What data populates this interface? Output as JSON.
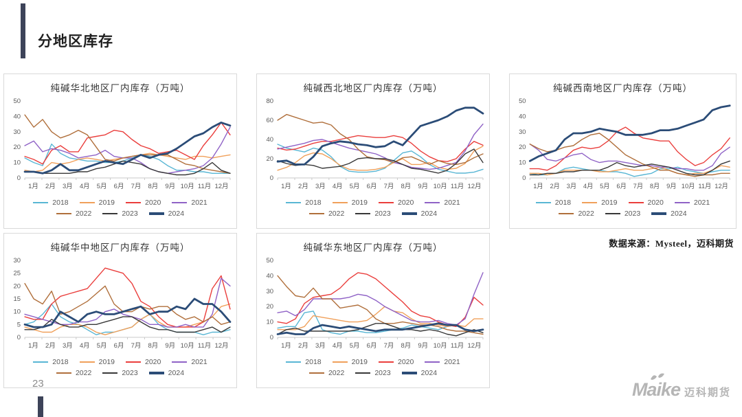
{
  "slide": {
    "title": "分地区库存",
    "page_number": "23",
    "source_note": "数据来源：Mysteel，迈科期货"
  },
  "logo": {
    "brand": "Maike",
    "brand_cn": "迈科期货"
  },
  "legend_years": [
    "2018",
    "2019",
    "2020",
    "2021",
    "2022",
    "2023",
    "2024"
  ],
  "series_colors": {
    "2018": "#58B6D4",
    "2019": "#F0A05A",
    "2020": "#EA3E3C",
    "2021": "#8F62C6",
    "2022": "#B06F3B",
    "2023": "#383838",
    "2024": "#2B4C77"
  },
  "accent_color": "#3D4359",
  "chart_data": [
    {
      "type": "line",
      "title": "纯碱华北地区厂内库存（万吨）",
      "x_labels": [
        "1月",
        "2月",
        "3月",
        "4月",
        "5月",
        "6月",
        "7月",
        "8月",
        "9月",
        "10月",
        "11月",
        "12月"
      ],
      "ylim": [
        0,
        50
      ],
      "yticks": [
        0,
        10,
        20,
        30,
        40,
        50
      ],
      "legend_position": "bottom",
      "grid": false,
      "series": [
        {
          "name": "2018",
          "values": [
            13,
            10,
            8,
            22,
            16,
            13,
            12,
            11,
            11,
            10,
            10,
            11,
            13,
            15,
            14,
            12,
            8,
            5,
            5,
            4,
            4,
            3,
            3,
            3
          ]
        },
        {
          "name": "2019",
          "values": [
            5,
            4,
            5,
            10,
            9,
            10,
            12,
            13,
            12,
            11,
            12,
            13,
            14,
            15,
            16,
            15,
            14,
            13,
            12,
            14,
            14,
            13,
            14,
            15
          ]
        },
        {
          "name": "2020",
          "values": [
            14,
            12,
            9,
            18,
            21,
            17,
            17,
            26,
            27,
            28,
            31,
            30,
            25,
            21,
            19,
            16,
            17,
            18,
            15,
            12,
            21,
            28,
            36,
            28
          ]
        },
        {
          "name": "2021",
          "values": [
            21,
            24,
            17,
            19,
            18,
            16,
            13,
            14,
            15,
            18,
            14,
            13,
            13,
            10,
            6,
            4,
            3,
            4,
            5,
            6,
            8,
            13,
            22,
            33
          ]
        },
        {
          "name": "2022",
          "values": [
            41,
            33,
            38,
            30,
            26,
            28,
            31,
            28,
            20,
            12,
            11,
            13,
            14,
            15,
            15,
            15,
            15,
            12,
            9,
            8,
            6,
            5,
            4,
            3
          ]
        },
        {
          "name": "2023",
          "values": [
            4,
            4,
            3,
            3,
            3,
            3,
            4,
            4,
            6,
            7,
            9,
            11,
            10,
            9,
            6,
            4,
            3,
            2,
            2,
            3,
            6,
            10,
            5,
            3
          ]
        },
        {
          "name": "2024",
          "values": [
            4,
            4,
            3,
            5,
            9,
            5,
            5,
            7,
            9,
            11,
            10,
            9,
            12,
            15,
            13,
            15,
            16,
            19,
            23,
            27,
            29,
            33,
            36,
            34
          ]
        }
      ]
    },
    {
      "type": "line",
      "title": "纯碱西北地区厂内库存（万吨）",
      "x_labels": [
        "1月",
        "2月",
        "3月",
        "4月",
        "5月",
        "6月",
        "7月",
        "8月",
        "9月",
        "10月",
        "11月",
        "12月"
      ],
      "ylim": [
        0,
        80
      ],
      "yticks": [
        0,
        20,
        40,
        60,
        80
      ],
      "legend_position": "bottom",
      "grid": false,
      "series": [
        {
          "name": "2018",
          "values": [
            35,
            31,
            29,
            27,
            31,
            29,
            22,
            12,
            7,
            6,
            6,
            7,
            10,
            18,
            26,
            28,
            22,
            14,
            9,
            7,
            5,
            5,
            6,
            9
          ]
        },
        {
          "name": "2019",
          "values": [
            8,
            11,
            16,
            23,
            26,
            25,
            20,
            13,
            9,
            8,
            8,
            9,
            11,
            16,
            20,
            14,
            14,
            16,
            11,
            9,
            10,
            15,
            28,
            33
          ]
        },
        {
          "name": "2020",
          "values": [
            31,
            29,
            30,
            33,
            36,
            38,
            38,
            40,
            42,
            44,
            43,
            42,
            42,
            44,
            42,
            36,
            28,
            22,
            18,
            17,
            20,
            30,
            38,
            34
          ]
        },
        {
          "name": "2021",
          "values": [
            30,
            32,
            34,
            36,
            39,
            40,
            37,
            34,
            31,
            29,
            27,
            25,
            21,
            16,
            14,
            11,
            10,
            9,
            10,
            13,
            16,
            28,
            45,
            56
          ]
        },
        {
          "name": "2022",
          "values": [
            60,
            66,
            63,
            60,
            57,
            58,
            55,
            46,
            40,
            30,
            22,
            20,
            19,
            16,
            21,
            22,
            18,
            14,
            18,
            15,
            14,
            16,
            21,
            25
          ]
        },
        {
          "name": "2023",
          "values": [
            18,
            15,
            13,
            14,
            13,
            10,
            11,
            12,
            15,
            20,
            21,
            20,
            20,
            18,
            14,
            10,
            9,
            7,
            5,
            8,
            15,
            25,
            30,
            16
          ]
        },
        {
          "name": "2024",
          "values": [
            17,
            18,
            14,
            14,
            22,
            33,
            36,
            38,
            37,
            35,
            34,
            32,
            33,
            38,
            34,
            44,
            54,
            57,
            60,
            64,
            70,
            73,
            73,
            67
          ]
        }
      ]
    },
    {
      "type": "line",
      "title": "纯碱西南地区厂内库存（万吨）",
      "x_labels": [
        "1月",
        "2月",
        "3月",
        "4月",
        "5月",
        "6月",
        "7月",
        "8月",
        "9月",
        "10月",
        "11月",
        "12月"
      ],
      "ylim": [
        0,
        50
      ],
      "yticks": [
        0,
        10,
        20,
        30,
        40,
        50
      ],
      "legend_position": "bottom",
      "grid": false,
      "series": [
        {
          "name": "2018",
          "values": [
            3,
            2,
            2,
            3,
            6,
            7,
            6,
            5,
            5,
            4,
            4,
            3,
            1,
            2,
            3,
            6,
            6,
            7,
            5,
            4,
            3,
            4,
            5,
            5
          ]
        },
        {
          "name": "2019",
          "values": [
            3,
            3,
            2,
            3,
            5,
            5,
            5,
            5,
            4,
            4,
            5,
            6,
            5,
            5,
            6,
            7,
            5,
            3,
            2,
            3,
            3,
            5,
            8,
            7
          ]
        },
        {
          "name": "2020",
          "values": [
            6,
            6,
            5,
            8,
            13,
            18,
            20,
            19,
            20,
            24,
            30,
            33,
            29,
            26,
            25,
            24,
            24,
            17,
            12,
            8,
            10,
            15,
            19,
            26
          ]
        },
        {
          "name": "2021",
          "values": [
            22,
            18,
            12,
            11,
            13,
            15,
            16,
            12,
            10,
            11,
            11,
            10,
            9,
            8,
            8,
            7,
            7,
            6,
            6,
            5,
            5,
            8,
            16,
            20
          ]
        },
        {
          "name": "2022",
          "values": [
            22,
            19,
            17,
            18,
            20,
            21,
            25,
            28,
            29,
            25,
            20,
            15,
            12,
            9,
            7,
            5,
            5,
            3,
            2,
            1,
            2,
            2,
            3,
            3
          ]
        },
        {
          "name": "2023",
          "values": [
            2,
            2,
            3,
            3,
            4,
            4,
            5,
            5,
            5,
            7,
            10,
            8,
            7,
            8,
            9,
            8,
            7,
            5,
            3,
            2,
            2,
            5,
            9,
            11
          ]
        },
        {
          "name": "2024",
          "values": [
            11,
            14,
            16,
            18,
            25,
            29,
            29,
            30,
            32,
            31,
            30,
            28,
            28,
            28,
            29,
            31,
            31,
            32,
            34,
            36,
            38,
            44,
            46,
            47
          ]
        }
      ]
    },
    {
      "type": "line",
      "title": "纯碱华中地区厂内库存（万吨）",
      "x_labels": [
        "1月",
        "2月",
        "3月",
        "4月",
        "5月",
        "6月",
        "7月",
        "8月",
        "9月",
        "10月",
        "11月",
        "12月"
      ],
      "ylim": [
        0,
        30
      ],
      "yticks": [
        0,
        5,
        10,
        15,
        20,
        25,
        30
      ],
      "legend_position": "bottom",
      "grid": false,
      "series": [
        {
          "name": "2018",
          "values": [
            5,
            6,
            9,
            13,
            8,
            6,
            5,
            3,
            1,
            2,
            2,
            3,
            4,
            7,
            9,
            5,
            3,
            2,
            2,
            2,
            1,
            2,
            2,
            3
          ]
        },
        {
          "name": "2019",
          "values": [
            4,
            3,
            2,
            2,
            4,
            5,
            5,
            4,
            2,
            1,
            2,
            3,
            4,
            7,
            9,
            6,
            4,
            4,
            4,
            5,
            6,
            8,
            12,
            13
          ]
        },
        {
          "name": "2020",
          "values": [
            8,
            7,
            7,
            13,
            16,
            17,
            18,
            19,
            23,
            27,
            26,
            25,
            21,
            14,
            12,
            8,
            5,
            4,
            4,
            4,
            6,
            19,
            24,
            11
          ]
        },
        {
          "name": "2021",
          "values": [
            9,
            8,
            7,
            6,
            5,
            5,
            6,
            6,
            7,
            10,
            11,
            9,
            8,
            7,
            5,
            5,
            4,
            4,
            5,
            4,
            4,
            9,
            23,
            20
          ]
        },
        {
          "name": "2022",
          "values": [
            21,
            15,
            13,
            18,
            9,
            10,
            12,
            14,
            17,
            20,
            13,
            10,
            10,
            12,
            11,
            12,
            12,
            9,
            7,
            8,
            6,
            8,
            5,
            6
          ]
        },
        {
          "name": "2023",
          "values": [
            3,
            3,
            4,
            7,
            5,
            4,
            4,
            5,
            5,
            6,
            7,
            8,
            8,
            6,
            4,
            3,
            3,
            2,
            2,
            2,
            3,
            4,
            2,
            4
          ]
        },
        {
          "name": "2024",
          "values": [
            5,
            4,
            4,
            5,
            10,
            8,
            6,
            9,
            10,
            9,
            9,
            10,
            11,
            12,
            9,
            10,
            10,
            12,
            11,
            15,
            13,
            13,
            10,
            6
          ]
        }
      ]
    },
    {
      "type": "line",
      "title": "纯碱华东地区厂内库存（万吨）",
      "x_labels": [
        "1月",
        "2月",
        "3月",
        "4月",
        "5月",
        "6月",
        "7月",
        "8月",
        "9月",
        "10月",
        "11月",
        "12月"
      ],
      "ylim": [
        0,
        50
      ],
      "yticks": [
        0,
        10,
        20,
        30,
        40,
        50
      ],
      "legend_position": "bottom",
      "grid": false,
      "series": [
        {
          "name": "2018",
          "values": [
            6,
            7,
            7,
            16,
            17,
            5,
            3,
            2,
            4,
            4,
            3,
            3,
            4,
            5,
            6,
            8,
            7,
            6,
            5,
            7,
            8,
            5,
            4,
            5
          ]
        },
        {
          "name": "2019",
          "values": [
            5,
            5,
            5,
            7,
            14,
            13,
            12,
            11,
            10,
            10,
            11,
            15,
            20,
            17,
            16,
            12,
            9,
            9,
            8,
            7,
            8,
            7,
            12,
            12
          ]
        },
        {
          "name": "2020",
          "values": [
            10,
            9,
            12,
            22,
            26,
            27,
            28,
            32,
            38,
            42,
            41,
            38,
            33,
            28,
            23,
            17,
            14,
            13,
            10,
            8,
            7,
            13,
            26,
            21
          ]
        },
        {
          "name": "2021",
          "values": [
            16,
            17,
            14,
            18,
            25,
            25,
            25,
            25,
            26,
            28,
            27,
            24,
            20,
            17,
            14,
            11,
            10,
            10,
            11,
            9,
            8,
            12,
            28,
            42
          ]
        },
        {
          "name": "2022",
          "values": [
            40,
            33,
            27,
            26,
            32,
            25,
            25,
            19,
            20,
            21,
            18,
            12,
            9,
            9,
            10,
            9,
            8,
            8,
            7,
            5,
            4,
            4,
            3,
            2
          ]
        },
        {
          "name": "2023",
          "values": [
            2,
            5,
            6,
            4,
            4,
            4,
            4,
            4,
            4,
            5,
            7,
            9,
            9,
            7,
            5,
            5,
            4,
            5,
            4,
            2,
            1,
            3,
            5,
            3
          ]
        },
        {
          "name": "2024",
          "values": [
            2,
            3,
            2,
            2,
            6,
            8,
            7,
            6,
            7,
            6,
            5,
            4,
            5,
            5,
            5,
            6,
            7,
            8,
            9,
            8,
            8,
            5,
            4,
            5
          ]
        }
      ]
    }
  ]
}
